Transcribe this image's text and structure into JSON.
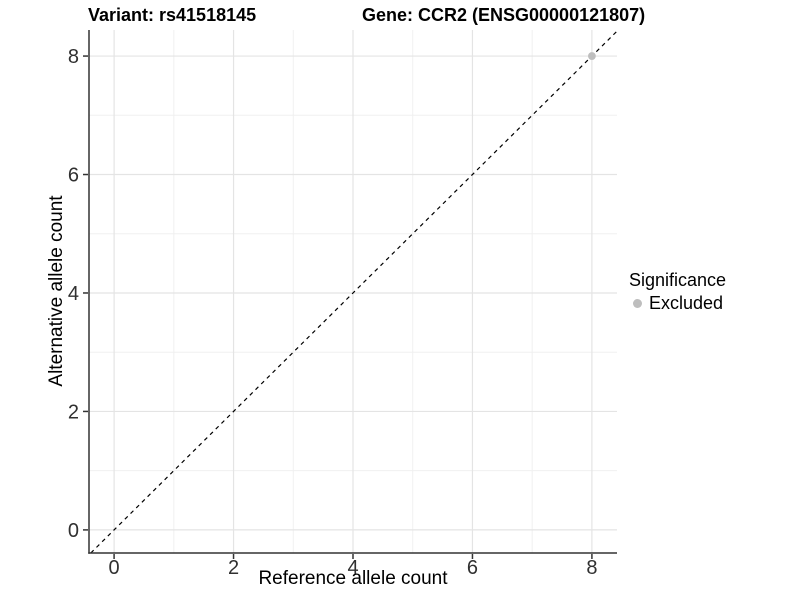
{
  "chart_data": {
    "type": "scatter",
    "titles": [
      "Variant: rs41518145",
      "Gene: CCR2 (ENSG00000121807)"
    ],
    "xlabel": "Reference allele count",
    "ylabel": "Alternative allele count",
    "xticks": [
      0,
      2,
      4,
      6,
      8
    ],
    "yticks": [
      0,
      2,
      4,
      6,
      8
    ],
    "xminor": [
      1,
      3,
      5,
      7
    ],
    "yminor": [
      1,
      3,
      5,
      7
    ],
    "xlim": [
      -0.42,
      8.42
    ],
    "ylim": [
      -0.39,
      8.44
    ],
    "grid": "major+minor on white panel",
    "reference_line": {
      "kind": "abline",
      "slope": 1,
      "intercept": 0,
      "linestyle": "dashed",
      "color": "#000000"
    },
    "series": [
      {
        "name": "Excluded",
        "color": "#bebebe",
        "points": [
          {
            "x": 8,
            "y": 8
          }
        ]
      }
    ],
    "legend": {
      "title": "Significance",
      "position": "right",
      "entries": [
        {
          "label": "Excluded",
          "color": "#bebebe"
        }
      ]
    },
    "colors": {
      "grid_major": "#e4e4e4",
      "grid_minor": "#f0f0f0",
      "axis": "#333333",
      "tick_text": "#303030",
      "title_text": "#000000",
      "point": "#bebebe",
      "background": "#ffffff"
    }
  }
}
